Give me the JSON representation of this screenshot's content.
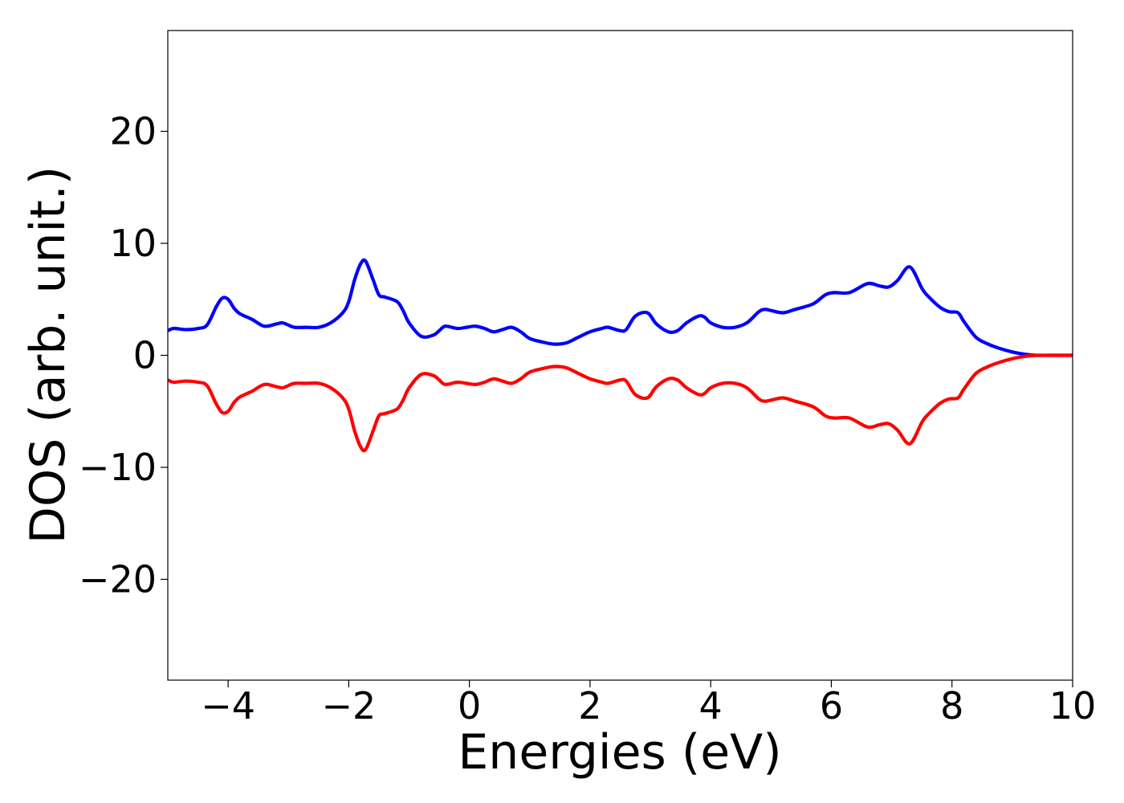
{
  "chart_data": {
    "type": "line",
    "title": "",
    "xlabel": "Energies (eV)",
    "ylabel": "DOS (arb. unit.)",
    "xlim": [
      -5,
      10
    ],
    "ylim": [
      -29,
      29
    ],
    "grid": false,
    "legend": "none",
    "x_ticks": [
      -4,
      -2,
      0,
      2,
      4,
      6,
      8,
      10
    ],
    "x_tick_labels": [
      "−4",
      "−2",
      "0",
      "2",
      "4",
      "6",
      "8",
      "10"
    ],
    "y_ticks": [
      -20,
      -10,
      0,
      10,
      20
    ],
    "y_tick_labels": [
      "−20",
      "−10",
      "0",
      "10",
      "20"
    ],
    "series": [
      {
        "color": "#0000ff",
        "x": [
          -5.0,
          -4.9,
          -4.7,
          -4.5,
          -4.35,
          -4.2,
          -4.1,
          -4.0,
          -3.9,
          -3.8,
          -3.6,
          -3.4,
          -3.2,
          -3.1,
          -3.0,
          -2.9,
          -2.7,
          -2.5,
          -2.3,
          -2.1,
          -2.0,
          -1.9,
          -1.8,
          -1.72,
          -1.6,
          -1.5,
          -1.4,
          -1.2,
          -1.1,
          -1.0,
          -0.8,
          -0.6,
          -0.5,
          -0.4,
          -0.2,
          -0.05,
          0.1,
          0.25,
          0.4,
          0.55,
          0.7,
          0.85,
          1.0,
          1.2,
          1.4,
          1.6,
          1.8,
          2.0,
          2.2,
          2.3,
          2.5,
          2.6,
          2.75,
          2.95,
          3.1,
          3.3,
          3.45,
          3.6,
          3.8,
          3.9,
          4.0,
          4.2,
          4.4,
          4.6,
          4.8,
          4.9,
          5.0,
          5.2,
          5.4,
          5.7,
          5.9,
          6.05,
          6.3,
          6.6,
          6.8,
          6.95,
          7.1,
          7.3,
          7.5,
          7.6,
          7.8,
          7.95,
          8.1,
          8.2,
          8.4,
          8.6,
          8.8,
          9.0,
          9.2,
          9.4,
          9.6,
          10.0
        ],
        "y": [
          2.2,
          2.4,
          2.3,
          2.4,
          2.7,
          4.3,
          5.1,
          5.0,
          4.2,
          3.7,
          3.2,
          2.6,
          2.8,
          2.9,
          2.7,
          2.5,
          2.5,
          2.5,
          2.9,
          3.8,
          4.8,
          6.8,
          8.2,
          8.4,
          6.8,
          5.4,
          5.2,
          4.8,
          4.0,
          2.9,
          1.7,
          1.8,
          2.2,
          2.6,
          2.4,
          2.5,
          2.6,
          2.4,
          2.1,
          2.3,
          2.5,
          2.1,
          1.5,
          1.2,
          1.0,
          1.1,
          1.6,
          2.1,
          2.4,
          2.5,
          2.2,
          2.3,
          3.5,
          3.8,
          2.8,
          2.1,
          2.2,
          2.9,
          3.5,
          3.4,
          2.9,
          2.5,
          2.5,
          2.9,
          3.9,
          4.1,
          4.0,
          3.8,
          4.1,
          4.6,
          5.4,
          5.6,
          5.6,
          6.4,
          6.2,
          6.1,
          6.7,
          7.9,
          6.0,
          5.3,
          4.3,
          3.9,
          3.8,
          3.0,
          1.6,
          1.0,
          0.6,
          0.3,
          0.1,
          0.0,
          0.0,
          0.0
        ]
      },
      {
        "color": "#ff0000",
        "x": [
          -5.0,
          -4.9,
          -4.7,
          -4.5,
          -4.35,
          -4.2,
          -4.1,
          -4.0,
          -3.9,
          -3.8,
          -3.6,
          -3.4,
          -3.2,
          -3.1,
          -3.0,
          -2.9,
          -2.7,
          -2.5,
          -2.3,
          -2.1,
          -2.0,
          -1.9,
          -1.8,
          -1.72,
          -1.6,
          -1.5,
          -1.4,
          -1.2,
          -1.1,
          -1.0,
          -0.8,
          -0.6,
          -0.5,
          -0.4,
          -0.2,
          -0.05,
          0.1,
          0.25,
          0.4,
          0.55,
          0.7,
          0.85,
          1.0,
          1.2,
          1.4,
          1.6,
          1.8,
          2.0,
          2.2,
          2.3,
          2.5,
          2.6,
          2.75,
          2.95,
          3.1,
          3.3,
          3.45,
          3.6,
          3.8,
          3.9,
          4.0,
          4.2,
          4.4,
          4.6,
          4.8,
          4.9,
          5.0,
          5.2,
          5.4,
          5.7,
          5.9,
          6.05,
          6.3,
          6.6,
          6.8,
          6.95,
          7.1,
          7.3,
          7.5,
          7.6,
          7.8,
          7.95,
          8.1,
          8.2,
          8.4,
          8.6,
          8.8,
          9.0,
          9.2,
          9.4,
          9.6,
          10.0
        ],
        "y": [
          -2.2,
          -2.4,
          -2.3,
          -2.4,
          -2.7,
          -4.3,
          -5.1,
          -5.0,
          -4.2,
          -3.7,
          -3.2,
          -2.6,
          -2.8,
          -2.9,
          -2.7,
          -2.5,
          -2.5,
          -2.5,
          -2.9,
          -3.8,
          -4.8,
          -6.8,
          -8.2,
          -8.4,
          -6.8,
          -5.4,
          -5.2,
          -4.8,
          -4.0,
          -2.9,
          -1.7,
          -1.8,
          -2.2,
          -2.6,
          -2.4,
          -2.5,
          -2.6,
          -2.4,
          -2.1,
          -2.3,
          -2.5,
          -2.1,
          -1.5,
          -1.2,
          -1.0,
          -1.1,
          -1.6,
          -2.1,
          -2.4,
          -2.5,
          -2.2,
          -2.3,
          -3.5,
          -3.8,
          -2.8,
          -2.1,
          -2.2,
          -2.9,
          -3.5,
          -3.4,
          -2.9,
          -2.5,
          -2.5,
          -2.9,
          -3.9,
          -4.1,
          -4.0,
          -3.8,
          -4.1,
          -4.6,
          -5.4,
          -5.6,
          -5.6,
          -6.4,
          -6.2,
          -6.1,
          -6.7,
          -7.9,
          -6.0,
          -5.3,
          -4.3,
          -3.9,
          -3.8,
          -3.0,
          -1.6,
          -1.0,
          -0.6,
          -0.3,
          -0.1,
          0.0,
          0.0,
          0.0
        ]
      }
    ]
  }
}
